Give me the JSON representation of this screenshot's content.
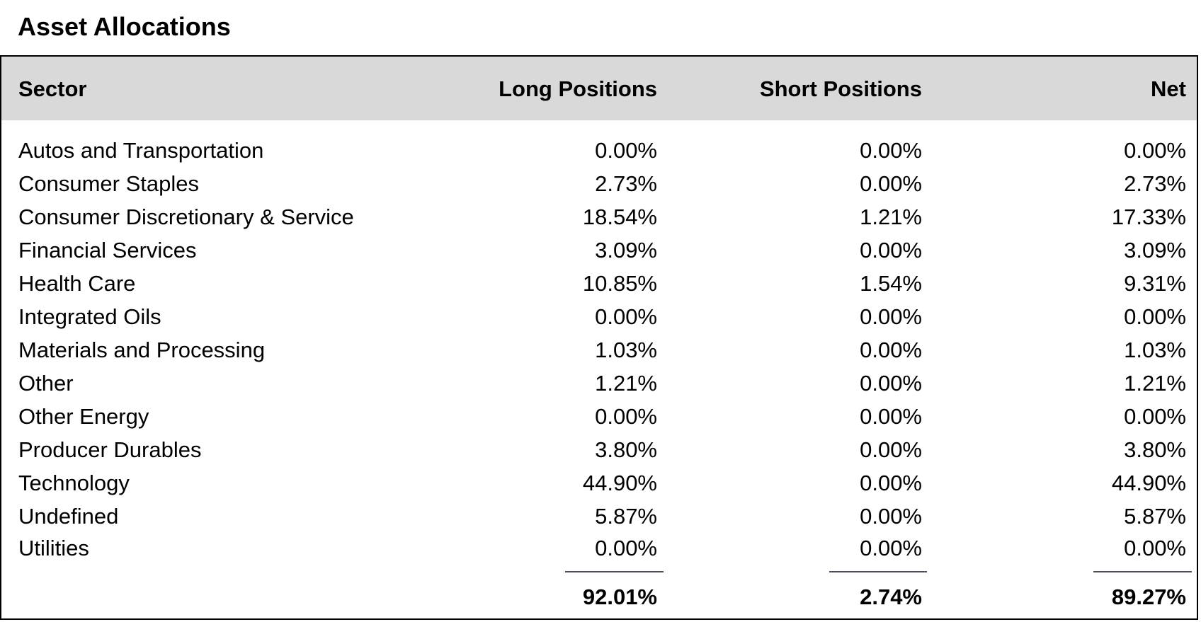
{
  "title": "Asset Allocations",
  "headers": {
    "sector": "Sector",
    "long": "Long Positions",
    "short": "Short Positions",
    "net": "Net"
  },
  "rows": [
    {
      "sector": "Autos and Transportation",
      "long": "0.00%",
      "short": "0.00%",
      "net": "0.00%"
    },
    {
      "sector": "Consumer Staples",
      "long": "2.73%",
      "short": "0.00%",
      "net": "2.73%"
    },
    {
      "sector": "Consumer Discretionary & Service",
      "long": "18.54%",
      "short": "1.21%",
      "net": "17.33%"
    },
    {
      "sector": "Financial Services",
      "long": "3.09%",
      "short": "0.00%",
      "net": "3.09%"
    },
    {
      "sector": "Health Care",
      "long": "10.85%",
      "short": "1.54%",
      "net": "9.31%"
    },
    {
      "sector": "Integrated Oils",
      "long": "0.00%",
      "short": "0.00%",
      "net": "0.00%"
    },
    {
      "sector": "Materials and Processing",
      "long": "1.03%",
      "short": "0.00%",
      "net": "1.03%"
    },
    {
      "sector": "Other",
      "long": "1.21%",
      "short": "0.00%",
      "net": "1.21%"
    },
    {
      "sector": "Other Energy",
      "long": "0.00%",
      "short": "0.00%",
      "net": "0.00%"
    },
    {
      "sector": "Producer Durables",
      "long": "3.80%",
      "short": "0.00%",
      "net": "3.80%"
    },
    {
      "sector": "Technology",
      "long": "44.90%",
      "short": "0.00%",
      "net": "44.90%"
    },
    {
      "sector": "Undefined",
      "long": "5.87%",
      "short": "0.00%",
      "net": "5.87%"
    },
    {
      "sector": "Utilities",
      "long": "0.00%",
      "short": "0.00%",
      "net": "0.00%"
    }
  ],
  "totals": {
    "long": "92.01%",
    "short": "2.74%",
    "net": "89.27%"
  }
}
